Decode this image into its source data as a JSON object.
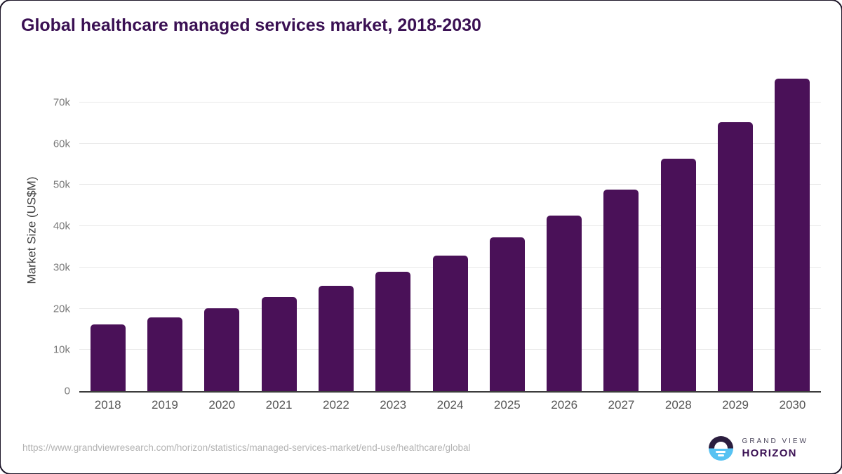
{
  "chart_data": {
    "type": "bar",
    "title": "Global healthcare managed services market, 2018-2030",
    "xlabel": "",
    "ylabel": "Market Size (US$M)",
    "unit": "US$M",
    "categories": [
      "2018",
      "2019",
      "2020",
      "2021",
      "2022",
      "2023",
      "2024",
      "2025",
      "2026",
      "2027",
      "2028",
      "2029",
      "2030"
    ],
    "values": [
      16100,
      17900,
      20100,
      22800,
      25600,
      29000,
      32900,
      37300,
      42600,
      48900,
      56400,
      65200,
      75800
    ],
    "ylim": [
      0,
      78000
    ],
    "y_ticks": [
      {
        "label": "0",
        "value": 0
      },
      {
        "label": "10k",
        "value": 10000
      },
      {
        "label": "20k",
        "value": 20000
      },
      {
        "label": "30k",
        "value": 30000
      },
      {
        "label": "40k",
        "value": 40000
      },
      {
        "label": "50k",
        "value": 50000
      },
      {
        "label": "60k",
        "value": 60000
      },
      {
        "label": "70k",
        "value": 70000
      }
    ],
    "grid": "horizontal",
    "legend": "none",
    "bar_color": "#4a1158"
  },
  "footer": {
    "source_url": "https://www.grandviewresearch.com/horizon/statistics/managed-services-market/end-use/healthcare/global",
    "brand_top": "GRAND VIEW",
    "brand_bottom": "HORIZON"
  },
  "colors": {
    "title": "#3a1053",
    "bar": "#4a1158",
    "axis_line": "#3c3c3c",
    "gridline": "#e8e8e8",
    "tick_label": "#7a7a7a",
    "x_label": "#565656",
    "url": "#b3b3b3",
    "logo_dark": "#2b1d3e",
    "logo_blue": "#57c2f2"
  }
}
